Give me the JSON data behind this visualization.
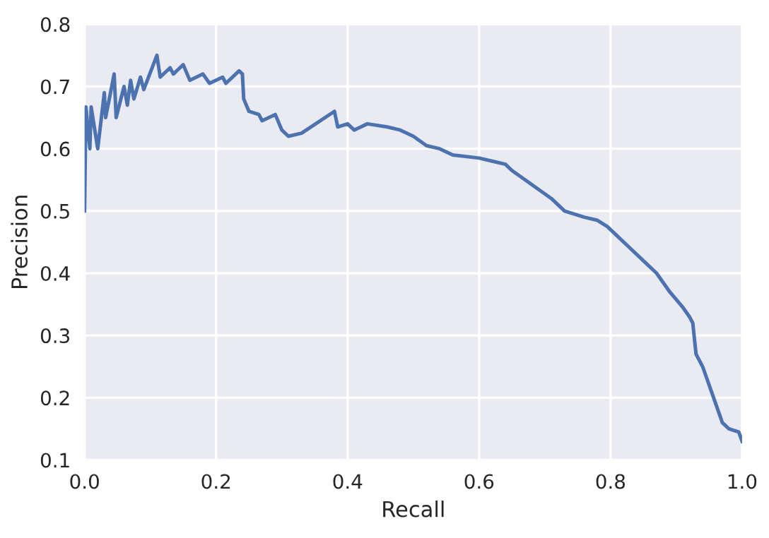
{
  "chart_data": {
    "type": "line",
    "xlabel": "Recall",
    "ylabel": "Precision",
    "xlim": [
      0,
      1
    ],
    "ylim": [
      0.1,
      0.8
    ],
    "xticks": [
      {
        "value": 0,
        "label": "0.0"
      },
      0.2,
      0.4,
      0.6,
      0.8,
      {
        "value": 1,
        "label": "1.0"
      }
    ],
    "yticks": [
      0.1,
      0.2,
      0.3,
      0.4,
      0.5,
      0.6,
      0.7,
      0.8
    ],
    "grid": true,
    "marker": "none",
    "line_style": "solid",
    "series": [
      {
        "color": "#4c72b0",
        "x": [
          0.0,
          0.002,
          0.008,
          0.01,
          0.02,
          0.03,
          0.032,
          0.045,
          0.048,
          0.06,
          0.065,
          0.07,
          0.075,
          0.085,
          0.09,
          0.11,
          0.115,
          0.13,
          0.135,
          0.15,
          0.16,
          0.18,
          0.19,
          0.21,
          0.215,
          0.235,
          0.24,
          0.242,
          0.25,
          0.265,
          0.27,
          0.29,
          0.3,
          0.31,
          0.33,
          0.38,
          0.385,
          0.4,
          0.41,
          0.43,
          0.46,
          0.48,
          0.5,
          0.52,
          0.54,
          0.56,
          0.6,
          0.62,
          0.64,
          0.65,
          0.67,
          0.69,
          0.71,
          0.73,
          0.76,
          0.78,
          0.795,
          0.81,
          0.83,
          0.85,
          0.87,
          0.89,
          0.91,
          0.92,
          0.925,
          0.93,
          0.94,
          0.95,
          0.96,
          0.97,
          0.98,
          0.995,
          1.0
        ],
        "values": [
          0.5,
          0.667,
          0.6,
          0.667,
          0.6,
          0.69,
          0.65,
          0.72,
          0.65,
          0.7,
          0.67,
          0.71,
          0.68,
          0.715,
          0.695,
          0.75,
          0.715,
          0.73,
          0.72,
          0.735,
          0.71,
          0.72,
          0.705,
          0.715,
          0.705,
          0.725,
          0.72,
          0.68,
          0.66,
          0.655,
          0.645,
          0.655,
          0.63,
          0.62,
          0.625,
          0.66,
          0.635,
          0.64,
          0.63,
          0.64,
          0.635,
          0.63,
          0.62,
          0.605,
          0.6,
          0.59,
          0.585,
          0.58,
          0.575,
          0.565,
          0.55,
          0.535,
          0.52,
          0.5,
          0.49,
          0.485,
          0.475,
          0.46,
          0.44,
          0.42,
          0.4,
          0.37,
          0.345,
          0.33,
          0.32,
          0.27,
          0.25,
          0.22,
          0.19,
          0.16,
          0.15,
          0.145,
          0.13
        ]
      }
    ]
  }
}
